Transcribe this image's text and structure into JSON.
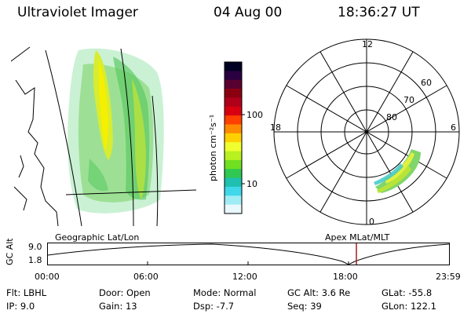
{
  "header": {
    "instrument": "Ultraviolet Imager",
    "date": "04 Aug 00",
    "time": "18:36:27 UT"
  },
  "colorbar": {
    "unit_label": "photon cm⁻²s⁻¹",
    "ticks": [
      "100",
      "10"
    ],
    "colors": [
      "#000022",
      "#2a0040",
      "#5a0030",
      "#8b0010",
      "#b0001a",
      "#d80010",
      "#ff4000",
      "#ff8a00",
      "#ffd000",
      "#f0ff30",
      "#b8f020",
      "#70e020",
      "#30c850",
      "#20c0b0",
      "#40d8e8",
      "#a0ecf4",
      "#e8f8fc"
    ]
  },
  "polar_plot": {
    "mlt_labels": {
      "top": "12",
      "right": "6",
      "bottom": "0",
      "left": "18"
    },
    "lat_labels": [
      "60",
      "70",
      "80"
    ]
  },
  "map_labels": {
    "geographic": "Geographic Lat/Lon",
    "apex": "Apex MLat/MLT"
  },
  "altitude_plot": {
    "ylabel": "GC Alt",
    "yticks": [
      "9.0",
      "1.8"
    ],
    "xticks": [
      "00:00",
      "06:00",
      "12:00",
      "18:00",
      "23:59"
    ],
    "marker_color": "#a02020"
  },
  "info": {
    "flt": "Flt: LBHL",
    "ip": "IP:  9.0",
    "door": "Door: Open",
    "gain": "Gain: 13",
    "mode": "Mode: Normal",
    "dsp": "Dsp:   -7.7",
    "gcalt": "GC Alt: 3.6 Re",
    "seq": "Seq: 39",
    "glat": "GLat: -55.8",
    "glon": "GLon: 122.1"
  }
}
